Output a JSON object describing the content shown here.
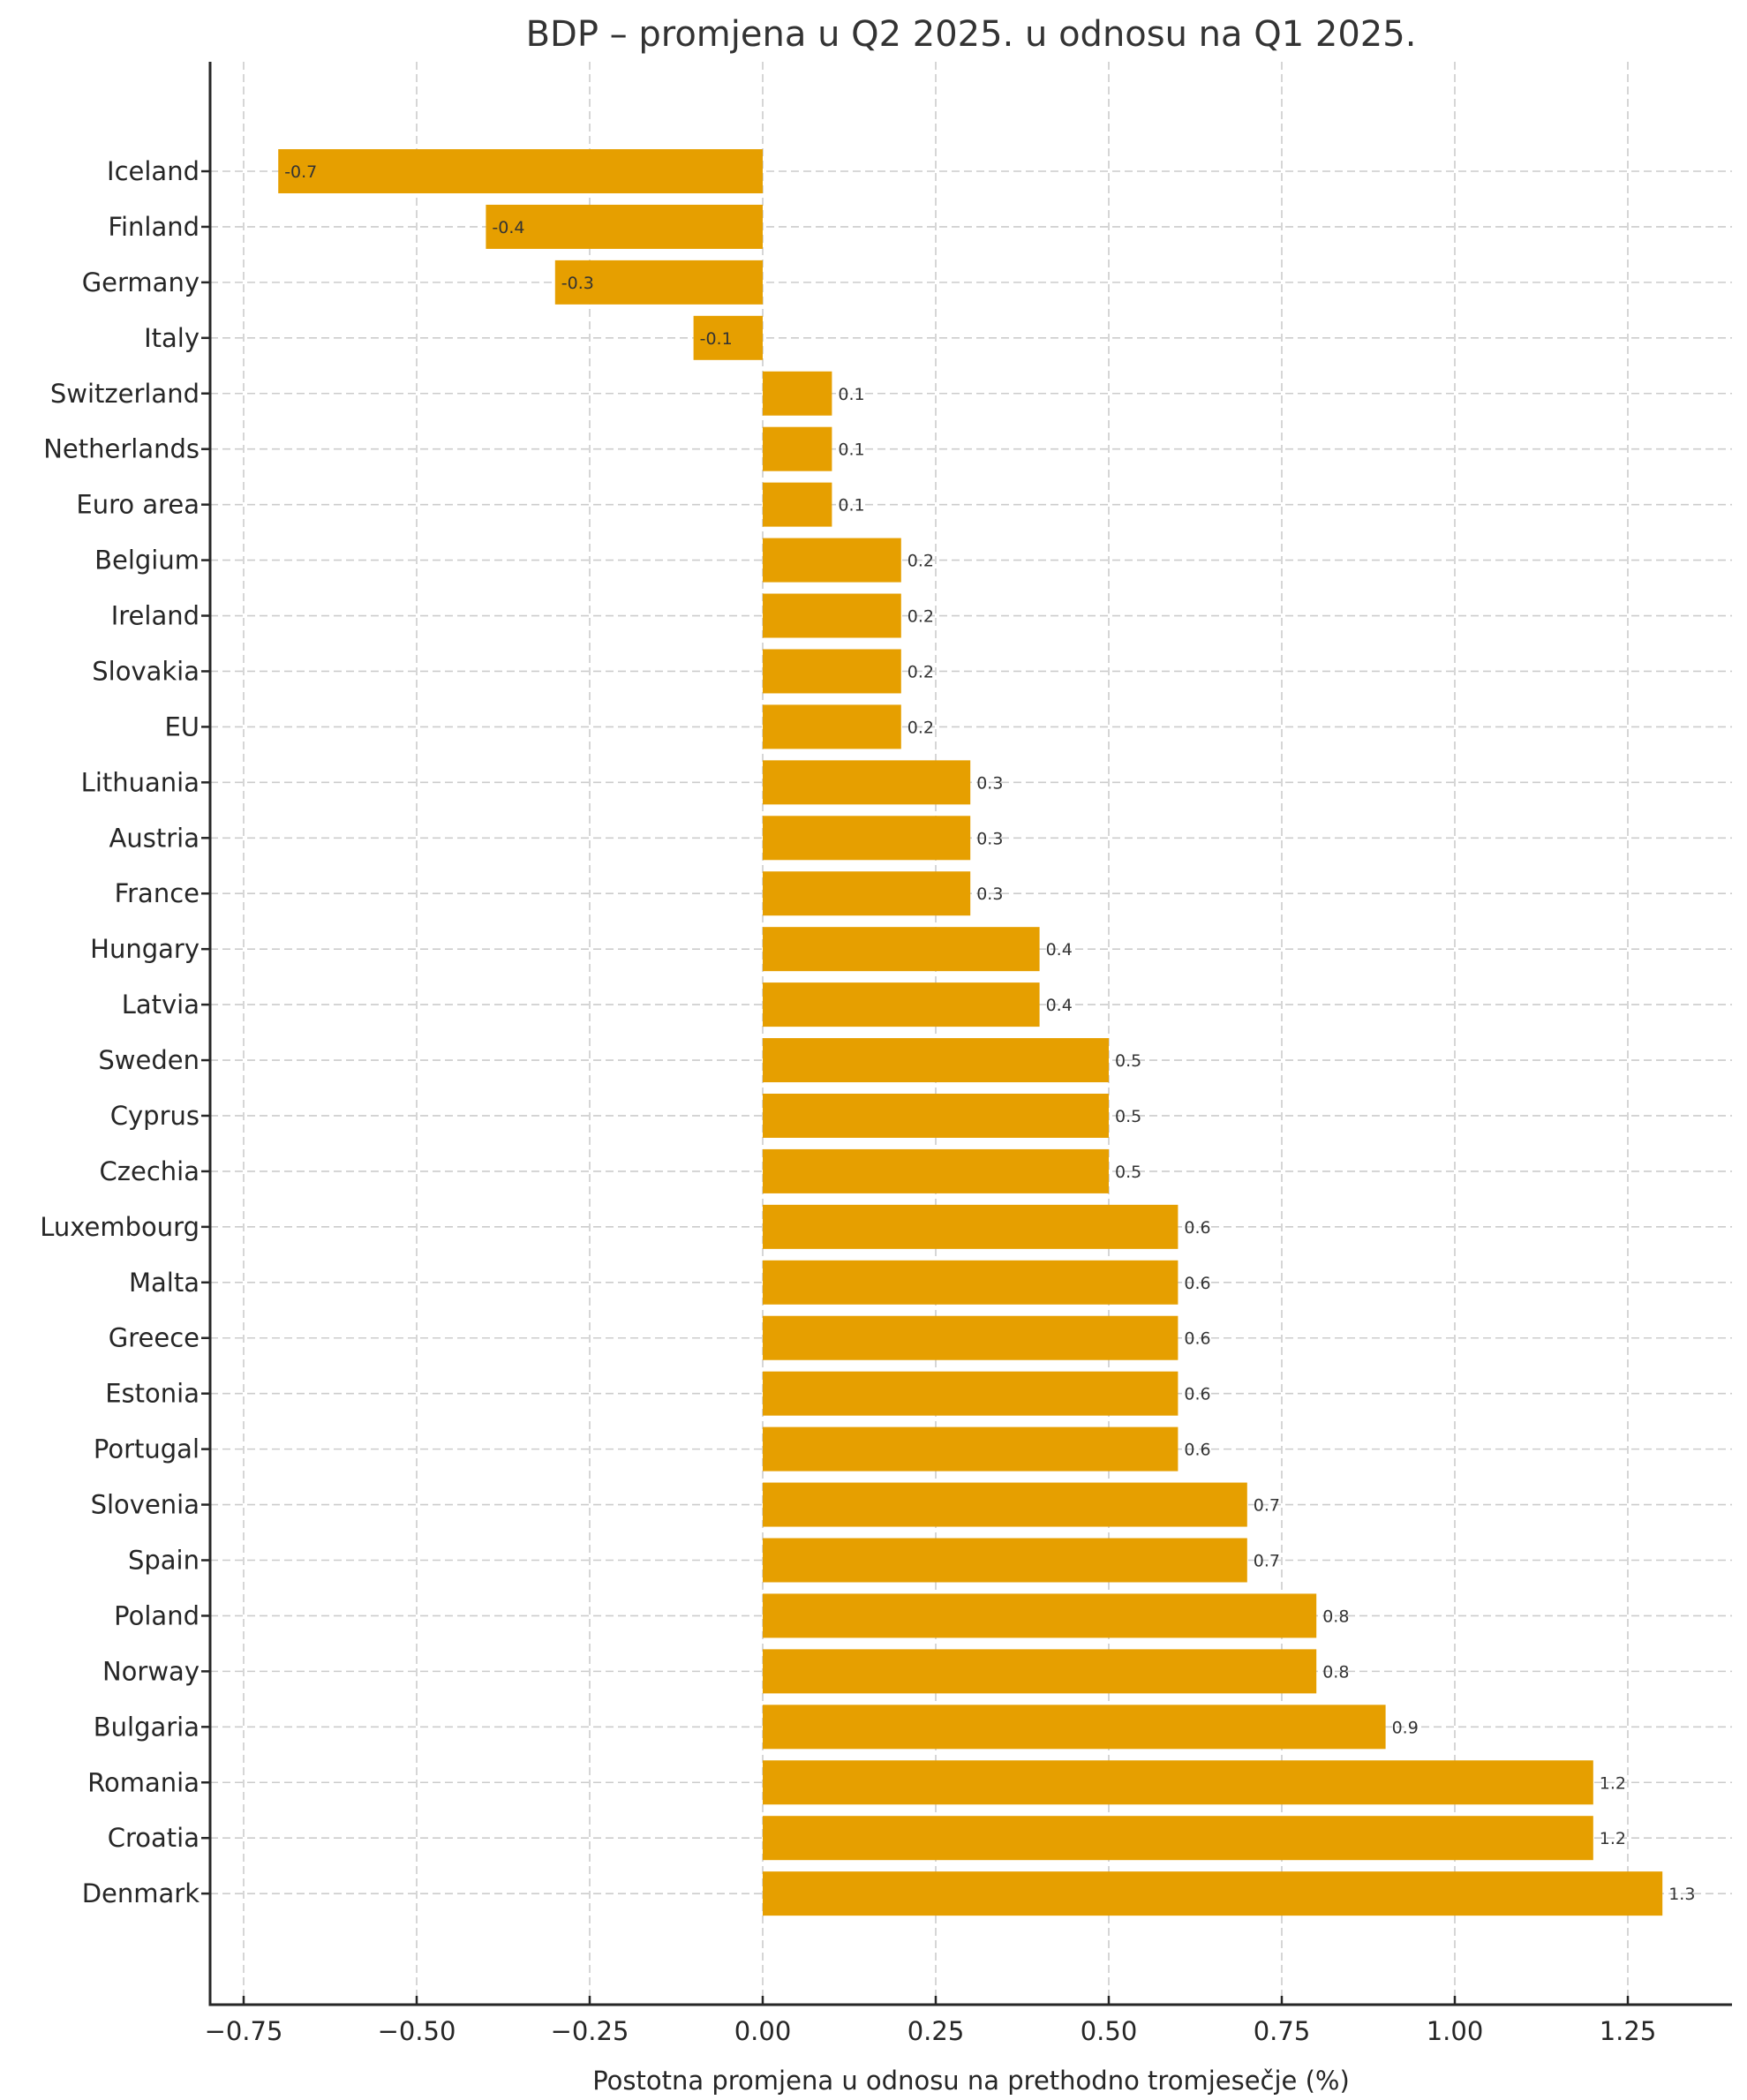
{
  "chart_data": {
    "type": "bar",
    "orientation": "horizontal",
    "title": "BDP – promjena u Q2 2025. u odnosu na Q1 2025.",
    "xlabel": "Postotna promjena u odnosu na prethodno tromjesečje (%)",
    "ylabel": "",
    "xlim": [
      -0.79,
      1.39
    ],
    "xticks": [
      -0.75,
      -0.5,
      -0.25,
      0.0,
      0.25,
      0.5,
      0.75,
      1.0,
      1.25
    ],
    "xtick_labels": [
      "−0.75",
      "−0.50",
      "−0.25",
      "0.00",
      "0.25",
      "0.50",
      "0.75",
      "1.00",
      "1.25"
    ],
    "grid": true,
    "bar_color": "#E69F00",
    "categories": [
      "Iceland",
      "Finland",
      "Germany",
      "Italy",
      "Switzerland",
      "Netherlands",
      "Euro area",
      "Belgium",
      "Ireland",
      "Slovakia",
      "EU",
      "Lithuania",
      "Austria",
      "France",
      "Hungary",
      "Latvia",
      "Sweden",
      "Cyprus",
      "Czechia",
      "Luxembourg",
      "Malta",
      "Greece",
      "Estonia",
      "Portugal",
      "Slovenia",
      "Spain",
      "Poland",
      "Norway",
      "Bulgaria",
      "Romania",
      "Croatia",
      "Denmark"
    ],
    "values": [
      -0.7,
      -0.4,
      -0.3,
      -0.1,
      0.1,
      0.1,
      0.1,
      0.2,
      0.2,
      0.2,
      0.2,
      0.3,
      0.3,
      0.3,
      0.4,
      0.4,
      0.5,
      0.5,
      0.5,
      0.6,
      0.6,
      0.6,
      0.6,
      0.6,
      0.7,
      0.7,
      0.8,
      0.8,
      0.9,
      1.2,
      1.2,
      1.3
    ],
    "data_labels": [
      "-0.7",
      "-0.4",
      "-0.3",
      "-0.1",
      "0.1",
      "0.1",
      "0.1",
      "0.2",
      "0.2",
      "0.2",
      "0.2",
      "0.3",
      "0.3",
      "0.3",
      "0.4",
      "0.4",
      "0.5",
      "0.5",
      "0.5",
      "0.6",
      "0.6",
      "0.6",
      "0.6",
      "0.6",
      "0.7",
      "0.7",
      "0.8",
      "0.8",
      "0.9",
      "1.2",
      "1.2",
      "1.3"
    ]
  }
}
